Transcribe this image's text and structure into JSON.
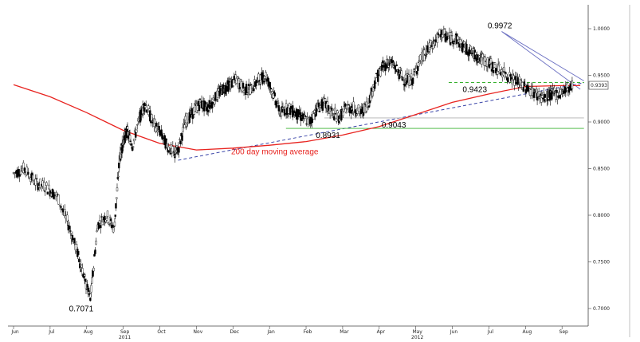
{
  "chart_data": {
    "type": "line",
    "title": "",
    "xlabel": "",
    "ylabel": "",
    "ylim": [
      0.68,
      1.03
    ],
    "y_ticks": [
      "1.0000",
      "0.9500",
      "0.9000",
      "0.8500",
      "0.8000",
      "0.7500",
      "0.7000"
    ],
    "months": [
      {
        "label": "Jun",
        "t": 0
      },
      {
        "label": "Jul",
        "t": 1
      },
      {
        "label": "Aug",
        "t": 2
      },
      {
        "label": "Sep",
        "t": 3
      },
      {
        "label": "Oct",
        "t": 4
      },
      {
        "label": "Nov",
        "t": 5
      },
      {
        "label": "Dec",
        "t": 6
      },
      {
        "label": "Jan",
        "t": 7
      },
      {
        "label": "Feb",
        "t": 8
      },
      {
        "label": "Mar",
        "t": 9
      },
      {
        "label": "Apr",
        "t": 10
      },
      {
        "label": "May",
        "t": 11
      },
      {
        "label": "Jun",
        "t": 12
      },
      {
        "label": "Jul",
        "t": 13
      },
      {
        "label": "Aug",
        "t": 14
      },
      {
        "label": "Sep",
        "t": 15
      }
    ],
    "years": [
      {
        "label": "2011",
        "t": 3
      },
      {
        "label": "2012",
        "t": 11
      }
    ],
    "series": [
      {
        "name": "",
        "kind": "candles",
        "color": "#000000",
        "x": [
          0.0,
          0.3,
          0.6,
          0.9,
          1.2,
          1.5,
          1.75,
          1.95,
          2.1,
          2.3,
          2.55,
          2.75,
          2.9,
          3.0,
          3.1,
          3.25,
          3.45,
          3.6,
          3.8,
          4.0,
          4.2,
          4.4,
          4.5,
          4.7,
          4.9,
          5.1,
          5.3,
          5.5,
          5.7,
          5.9,
          6.1,
          6.3,
          6.5,
          6.7,
          6.9,
          7.1,
          7.3,
          7.5,
          7.7,
          7.9,
          8.1,
          8.3,
          8.5,
          8.7,
          8.9,
          9.1,
          9.3,
          9.5,
          9.7,
          9.9,
          10.1,
          10.3,
          10.5,
          10.7,
          10.9,
          11.1,
          11.3,
          11.5,
          11.7,
          11.9,
          12.1,
          12.3,
          12.5,
          12.7,
          12.9,
          13.1,
          13.3,
          13.5,
          13.7,
          13.9,
          14.1,
          14.3,
          14.5,
          14.7,
          14.9,
          15.1,
          15.3
        ],
        "values": [
          0.845,
          0.85,
          0.835,
          0.83,
          0.82,
          0.79,
          0.76,
          0.73,
          0.71,
          0.79,
          0.8,
          0.785,
          0.86,
          0.88,
          0.89,
          0.875,
          0.905,
          0.92,
          0.9,
          0.89,
          0.875,
          0.865,
          0.87,
          0.9,
          0.91,
          0.92,
          0.915,
          0.925,
          0.935,
          0.94,
          0.945,
          0.935,
          0.935,
          0.945,
          0.95,
          0.93,
          0.91,
          0.915,
          0.91,
          0.905,
          0.9,
          0.915,
          0.92,
          0.91,
          0.905,
          0.915,
          0.915,
          0.91,
          0.92,
          0.945,
          0.96,
          0.965,
          0.955,
          0.945,
          0.945,
          0.965,
          0.975,
          0.985,
          0.995,
          0.99,
          0.99,
          0.98,
          0.975,
          0.97,
          0.965,
          0.96,
          0.955,
          0.95,
          0.945,
          0.94,
          0.935,
          0.93,
          0.925,
          0.93,
          0.93,
          0.935,
          0.94
        ]
      },
      {
        "name": "200 day moving average",
        "kind": "line",
        "color": "#e8231f",
        "x": [
          0,
          1,
          2,
          3,
          4,
          5,
          6,
          7,
          8,
          9,
          10,
          11,
          12,
          13,
          14,
          15,
          15.5
        ],
        "values": [
          0.94,
          0.927,
          0.91,
          0.891,
          0.877,
          0.87,
          0.872,
          0.875,
          0.879,
          0.886,
          0.895,
          0.908,
          0.921,
          0.93,
          0.938,
          0.939,
          0.939
        ]
      }
    ],
    "trendlines": [
      {
        "style": "dashed",
        "color": "#3a45a8",
        "x": [
          4.5,
          15.6
        ],
        "values": [
          0.859,
          0.942
        ]
      },
      {
        "style": "solid",
        "color": "#6b70c2",
        "x": [
          13.35,
          15.6
        ],
        "values": [
          0.997,
          0.944
        ]
      },
      {
        "style": "solid",
        "color": "#6b70c2",
        "x": [
          13.35,
          15.5
        ],
        "values": [
          0.997,
          0.935
        ]
      },
      {
        "style": "dashed",
        "color": "#36b02d",
        "x": [
          11.9,
          15.6
        ],
        "values": [
          0.9423,
          0.9423
        ]
      },
      {
        "style": "solid",
        "color": "#36b02d",
        "x": [
          7.45,
          15.6
        ],
        "values": [
          0.8931,
          0.8931
        ]
      },
      {
        "style": "solid",
        "color": "#b0b0b0",
        "x": [
          8.5,
          15.6
        ],
        "values": [
          0.9043,
          0.9043
        ]
      }
    ],
    "annotations": [
      {
        "text": "0.9972",
        "x": 13.3,
        "y": 0.9972
      },
      {
        "text": "0.9423",
        "x": 12.15,
        "y": 0.9423
      },
      {
        "text": "0.9043",
        "x": 10.4,
        "y": 0.9043
      },
      {
        "text": "0.8931",
        "x": 8.6,
        "y": 0.8931
      },
      {
        "text": "0.7071",
        "x": 1.85,
        "y": 0.7071
      }
    ],
    "ma_label": "200 day moving average",
    "last_price": "0.9393",
    "grid": false,
    "legend": "none"
  }
}
